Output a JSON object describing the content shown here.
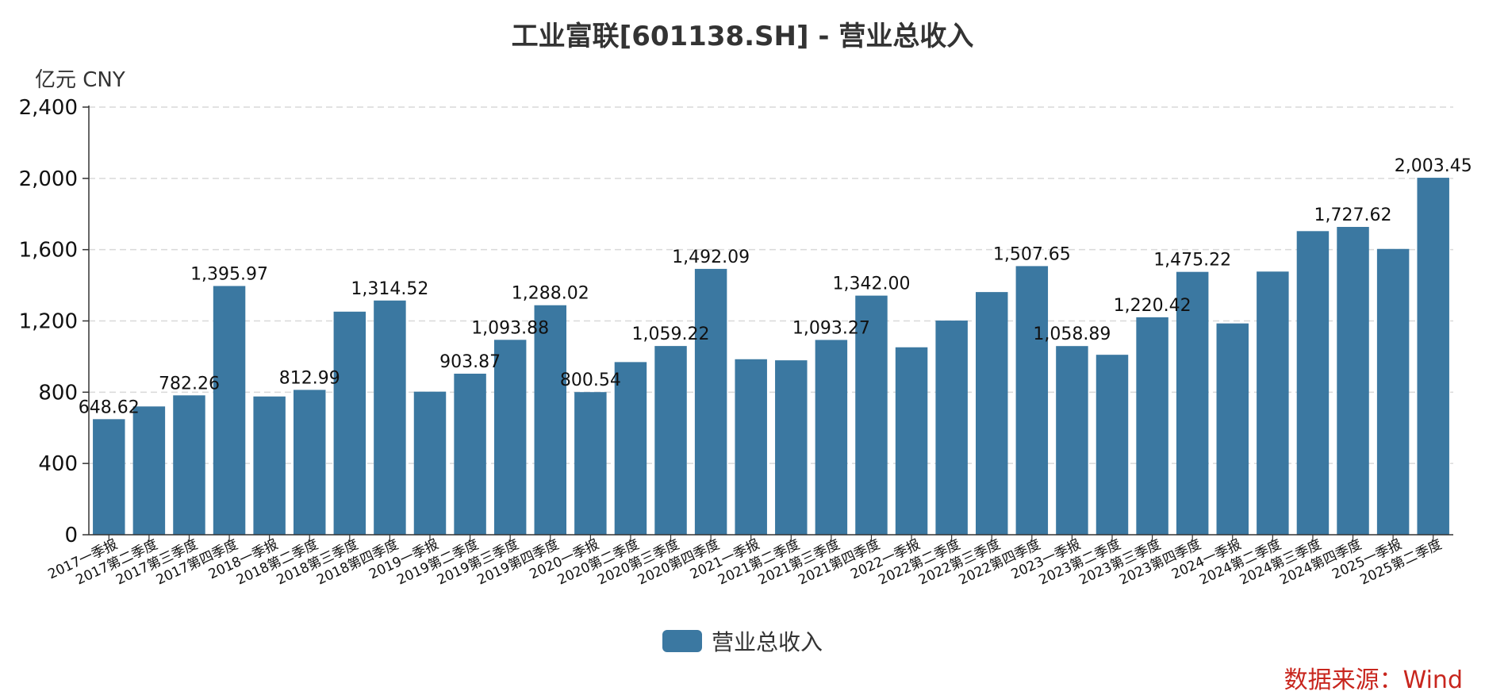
{
  "title": "工业富联[601138.SH] - 营业总收入",
  "y_unit": "亿元  CNY",
  "source": "数据来源：Wind",
  "colors": {
    "bar": "#3b78a1",
    "source": "#c8261e",
    "grid": "#d9d9d9"
  },
  "chart_data": {
    "type": "bar",
    "categories": [
      "2017一季报",
      "2017第二季度",
      "2017第三季度",
      "2017第四季度",
      "2018一季报",
      "2018第二季度",
      "2018第三季度",
      "2018第四季度",
      "2019一季报",
      "2019第二季度",
      "2019第三季度",
      "2019第四季度",
      "2020一季报",
      "2020第二季度",
      "2020第三季度",
      "2020第四季度",
      "2021一季报",
      "2021第二季度",
      "2021第三季度",
      "2021第四季度",
      "2022一季报",
      "2022第二季度",
      "2022第三季度",
      "2022第四季度",
      "2023一季报",
      "2023第二季度",
      "2023第三季度",
      "2023第四季度",
      "2024一季报",
      "2024第二季度",
      "2024第三季度",
      "2024第四季度",
      "2025一季报",
      "2025第二季度"
    ],
    "series": [
      {
        "name": "营业总收入",
        "values": [
          648.62,
          720,
          782.26,
          1395.97,
          776,
          812.99,
          1252,
          1314.52,
          803,
          903.87,
          1093.88,
          1288.02,
          800.54,
          969,
          1059.22,
          1492.09,
          985,
          979,
          1093.27,
          1342.0,
          1052,
          1202,
          1362,
          1507.65,
          1058.89,
          1010,
          1220.42,
          1475.22,
          1186,
          1477,
          1704,
          1727.62,
          1604,
          2003.45
        ],
        "labels": [
          "648.62",
          "",
          "782.26",
          "1,395.97",
          "",
          "812.99",
          "",
          "1,314.52",
          "",
          "903.87",
          "1,093.88",
          "1,288.02",
          "800.54",
          "",
          "1,059.22",
          "1,492.09",
          "",
          "",
          "1,093.27",
          "1,342.00",
          "",
          "",
          "",
          "1,507.65",
          "1,058.89",
          "",
          "1,220.42",
          "1,475.22",
          "",
          "",
          "",
          "1,727.62",
          "",
          "2,003.45"
        ]
      }
    ],
    "y_ticks": [
      "0",
      "400",
      "800",
      "1,200",
      "1,600",
      "2,000",
      "2,400"
    ],
    "ylim": [
      0,
      2400
    ],
    "grid": true,
    "legend_position": "bottom-center"
  }
}
